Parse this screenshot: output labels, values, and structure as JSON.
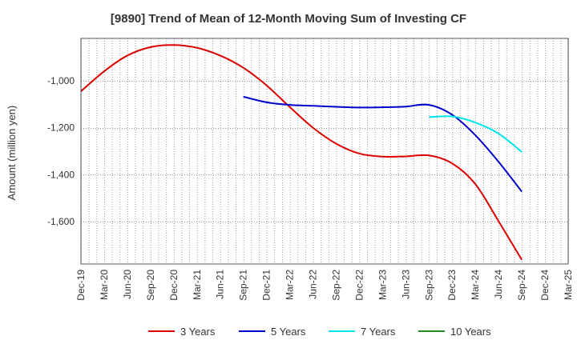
{
  "chart_data": {
    "type": "line",
    "title": "[9890]  Trend of Mean of 12-Month Moving Sum of Investing CF",
    "xlabel": "",
    "ylabel": "Amount (million yen)",
    "ylim": [
      -1780,
      -820
    ],
    "yticks": [
      -1000,
      -1200,
      -1400,
      -1600
    ],
    "ytick_labels": [
      "-1,000",
      "-1,200",
      "-1,400",
      "-1,600"
    ],
    "x_categories": [
      "Dec-19",
      "Mar-20",
      "Jun-20",
      "Sep-20",
      "Dec-20",
      "Mar-21",
      "Jun-21",
      "Sep-21",
      "Dec-21",
      "Mar-22",
      "Jun-22",
      "Sep-22",
      "Dec-22",
      "Mar-23",
      "Jun-23",
      "Sep-23",
      "Dec-23",
      "Mar-24",
      "Jun-24",
      "Sep-24",
      "Dec-24",
      "Mar-25"
    ],
    "grid": true,
    "legend_position": "bottom",
    "series": [
      {
        "name": "3 Years",
        "color": "#dd0000",
        "x": [
          "Dec-19",
          "Mar-20",
          "Jun-20",
          "Sep-20",
          "Dec-20",
          "Mar-21",
          "Jun-21",
          "Sep-21",
          "Dec-21",
          "Mar-22",
          "Jun-22",
          "Sep-22",
          "Dec-22",
          "Mar-23",
          "Jun-23",
          "Sep-23",
          "Dec-23",
          "Mar-24",
          "Jun-24",
          "Sep-24"
        ],
        "values": [
          -1045,
          -960,
          -893,
          -857,
          -848,
          -860,
          -893,
          -945,
          -1020,
          -1112,
          -1200,
          -1268,
          -1310,
          -1323,
          -1322,
          -1318,
          -1352,
          -1440,
          -1598,
          -1762
        ]
      },
      {
        "name": "5 Years",
        "color": "#0000cc",
        "x": [
          "Sep-21",
          "Dec-21",
          "Mar-22",
          "Jun-22",
          "Sep-22",
          "Dec-22",
          "Mar-23",
          "Jun-23",
          "Sep-23",
          "Dec-23",
          "Mar-24",
          "Jun-24",
          "Sep-24"
        ],
        "values": [
          -1068,
          -1092,
          -1103,
          -1107,
          -1111,
          -1114,
          -1113,
          -1110,
          -1103,
          -1145,
          -1232,
          -1345,
          -1472
        ]
      },
      {
        "name": "7 Years",
        "color": "#00e5ee",
        "x": [
          "Sep-23",
          "Dec-23",
          "Mar-24",
          "Jun-24",
          "Sep-24"
        ],
        "values": [
          -1155,
          -1152,
          -1178,
          -1225,
          -1303
        ]
      },
      {
        "name": "10 Years",
        "color": "#228B22",
        "x": [],
        "values": []
      }
    ]
  }
}
